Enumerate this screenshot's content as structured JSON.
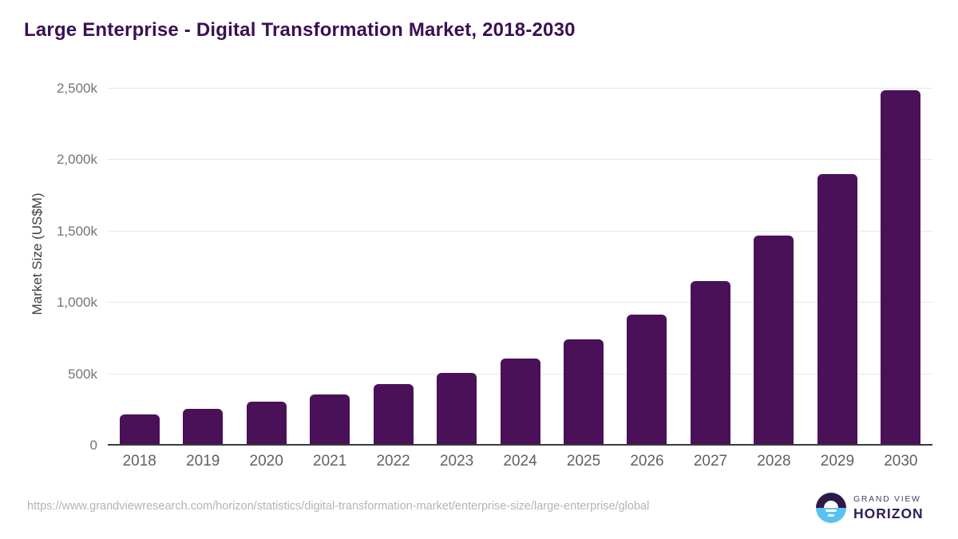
{
  "header": {
    "title": "Large Enterprise - Digital Transformation Market, 2018-2030"
  },
  "chart_data": {
    "type": "bar",
    "title": "Large Enterprise - Digital Transformation Market, 2018-2030",
    "xlabel": "",
    "ylabel": "Market Size (US$M)",
    "categories": [
      "2018",
      "2019",
      "2020",
      "2021",
      "2022",
      "2023",
      "2024",
      "2025",
      "2026",
      "2027",
      "2028",
      "2029",
      "2030"
    ],
    "values": [
      220,
      260,
      305,
      360,
      430,
      508,
      610,
      745,
      920,
      1155,
      1470,
      1900,
      2490
    ],
    "values_unit": "k",
    "ylim": [
      0,
      2500
    ],
    "yticks": [
      {
        "value": 0,
        "label": "0"
      },
      {
        "value": 500,
        "label": "500k"
      },
      {
        "value": 1000,
        "label": "1,000k"
      },
      {
        "value": 1500,
        "label": "1,500k"
      },
      {
        "value": 2000,
        "label": "2,000k"
      },
      {
        "value": 2500,
        "label": "2,500k"
      }
    ],
    "grid": "horizontal",
    "legend": "none",
    "bar_color": "#4a1158"
  },
  "footer": {
    "source_url": "https://www.grandviewresearch.com/horizon/statistics/digital-transformation-market/enterprise-size/large-enterprise/global",
    "logo": {
      "line1": "GRAND VIEW",
      "line2": "HORIZON"
    }
  },
  "colors": {
    "title": "#3a1053",
    "bar": "#4a1158",
    "logo_purple": "#2e1a47",
    "logo_blue": "#58c2f0",
    "logo_text": "#311d52"
  }
}
